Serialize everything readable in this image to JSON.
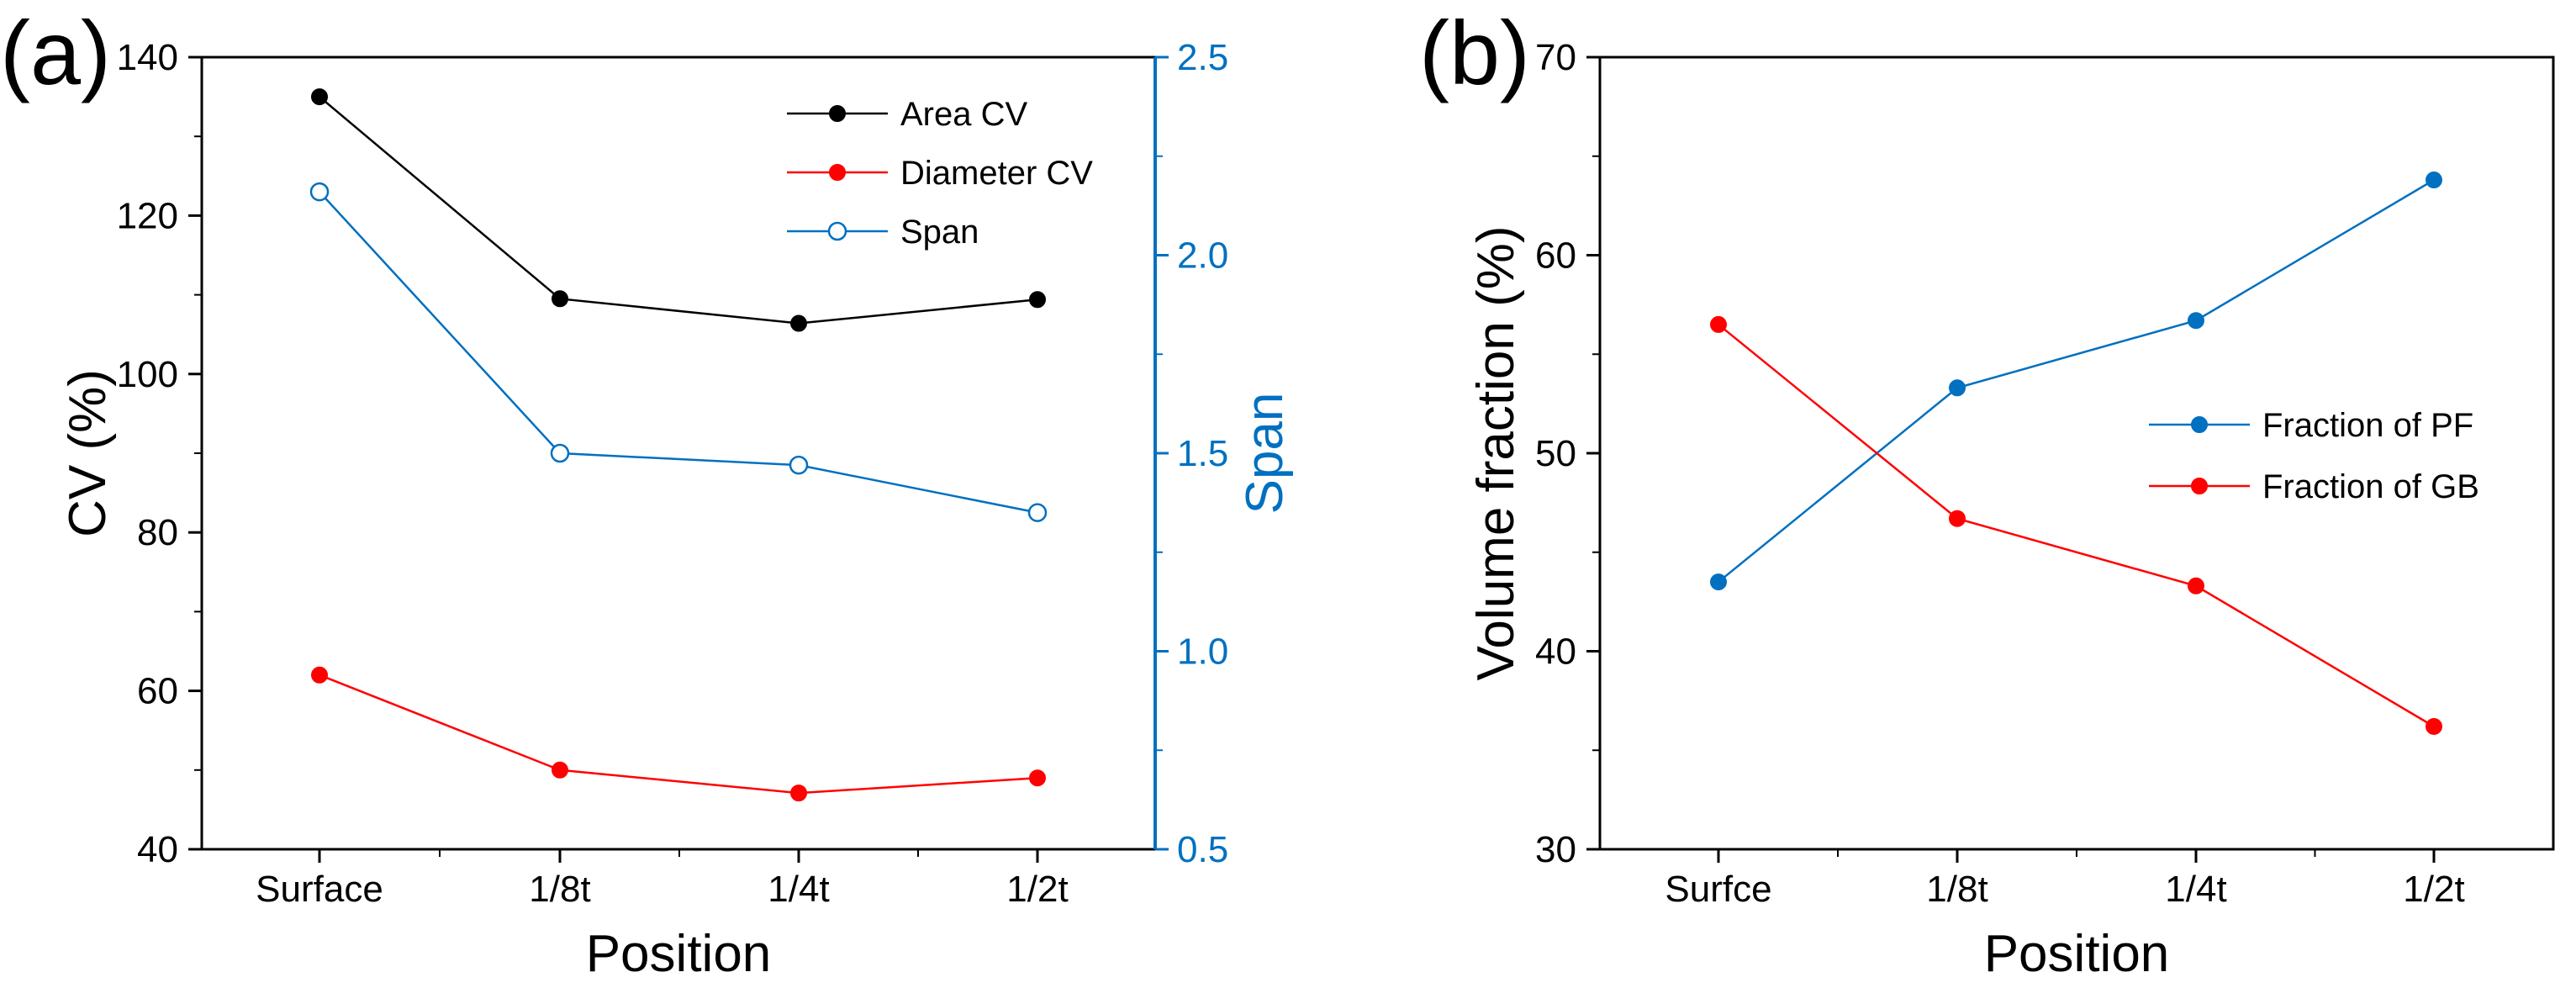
{
  "panels": [
    {
      "label": "(a)",
      "xlabel": "Position",
      "ylabel": "CV (%)",
      "y2label": "Span"
    },
    {
      "label": "(b)",
      "xlabel": "Position",
      "ylabel": "Volume fraction (%)"
    }
  ],
  "colors": {
    "black": "#000000",
    "red": "#ff0000",
    "blue": "#0070c0",
    "axis2": "#0070c0"
  },
  "chart_data": [
    {
      "type": "line",
      "panel_label": "(a)",
      "categories": [
        "Surface",
        "1/8t",
        "1/4t",
        "1/2t"
      ],
      "xlabel": "Position",
      "ylabel": "CV (%)",
      "ylim": [
        40,
        140
      ],
      "yticks": [
        40,
        60,
        80,
        100,
        120,
        140
      ],
      "y2label": "Span",
      "y2lim": [
        0.5,
        2.5
      ],
      "y2ticks": [
        "0.5",
        "1.0",
        "1.5",
        "2.0",
        "2.5"
      ],
      "legend_position": "top-right",
      "series": [
        {
          "name": "Area CV",
          "axis": "left",
          "color": "#000000",
          "marker": "filled",
          "values": [
            135,
            109.5,
            106.4,
            109.4
          ]
        },
        {
          "name": "Diameter CV",
          "axis": "left",
          "color": "#ff0000",
          "marker": "filled",
          "values": [
            62,
            50,
            47.1,
            49
          ]
        },
        {
          "name": "Span",
          "axis": "right",
          "color": "#0070c0",
          "marker": "open",
          "values": [
            2.16,
            1.5,
            1.47,
            1.35
          ]
        }
      ]
    },
    {
      "type": "line",
      "panel_label": "(b)",
      "categories": [
        "Surfce",
        "1/8t",
        "1/4t",
        "1/2t"
      ],
      "xlabel": "Position",
      "ylabel": "Volume fraction (%)",
      "ylim": [
        30,
        70
      ],
      "yticks": [
        30,
        40,
        50,
        60,
        70
      ],
      "legend_position": "center-right",
      "series": [
        {
          "name": "Fraction of PF",
          "axis": "left",
          "color": "#0070c0",
          "marker": "filled",
          "values": [
            43.5,
            53.3,
            56.7,
            63.8
          ]
        },
        {
          "name": "Fraction of GB",
          "axis": "left",
          "color": "#ff0000",
          "marker": "filled",
          "values": [
            56.5,
            46.7,
            43.3,
            36.2
          ]
        }
      ]
    }
  ]
}
